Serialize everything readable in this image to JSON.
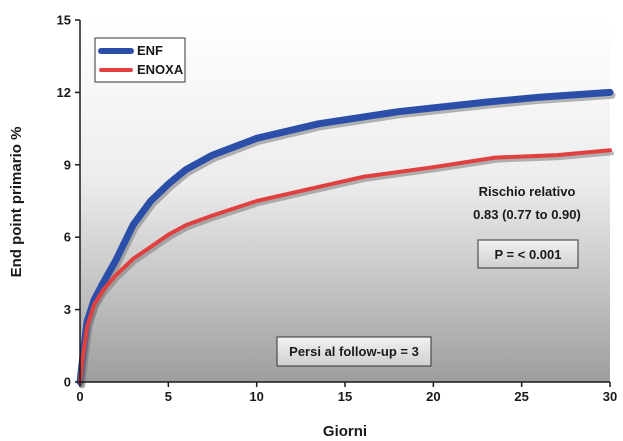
{
  "chart_data": {
    "type": "line",
    "xlabel": "Giorni",
    "ylabel": "End point primario %",
    "xlim": [
      0,
      30
    ],
    "ylim": [
      0,
      15
    ],
    "xticks": [
      0,
      5,
      10,
      15,
      20,
      25,
      30
    ],
    "yticks": [
      0,
      3,
      6,
      9,
      12,
      15
    ],
    "grid": false,
    "legend_position": "top-left",
    "series": [
      {
        "name": "ENF",
        "color": "#2b4fa8",
        "x": [
          0,
          0.15,
          0.4,
          0.8,
          1.3,
          2,
          3,
          4,
          5,
          6,
          7.5,
          10,
          13.5,
          18,
          23,
          26,
          30
        ],
        "y": [
          0,
          1,
          2.5,
          3.4,
          4.1,
          5.0,
          6.5,
          7.5,
          8.2,
          8.8,
          9.4,
          10.1,
          10.7,
          11.2,
          11.6,
          11.8,
          12.0
        ]
      },
      {
        "name": "ENOXA",
        "color": "#e04040",
        "x": [
          0,
          0.15,
          0.4,
          0.8,
          1.3,
          2,
          3,
          4,
          5,
          6,
          7.5,
          10,
          13,
          16,
          20,
          23.5,
          27,
          30
        ],
        "y": [
          0,
          1,
          2.3,
          3.2,
          3.8,
          4.4,
          5.1,
          5.6,
          6.1,
          6.5,
          6.9,
          7.5,
          8.0,
          8.5,
          8.9,
          9.3,
          9.4,
          9.6
        ]
      }
    ],
    "annotations": {
      "rr_line1": "Rischio relativo",
      "rr_line2": "0.83 (0.77 to 0.90)",
      "pvalue": "P = < 0.001",
      "lost": "Persi al follow-up = 3"
    }
  }
}
